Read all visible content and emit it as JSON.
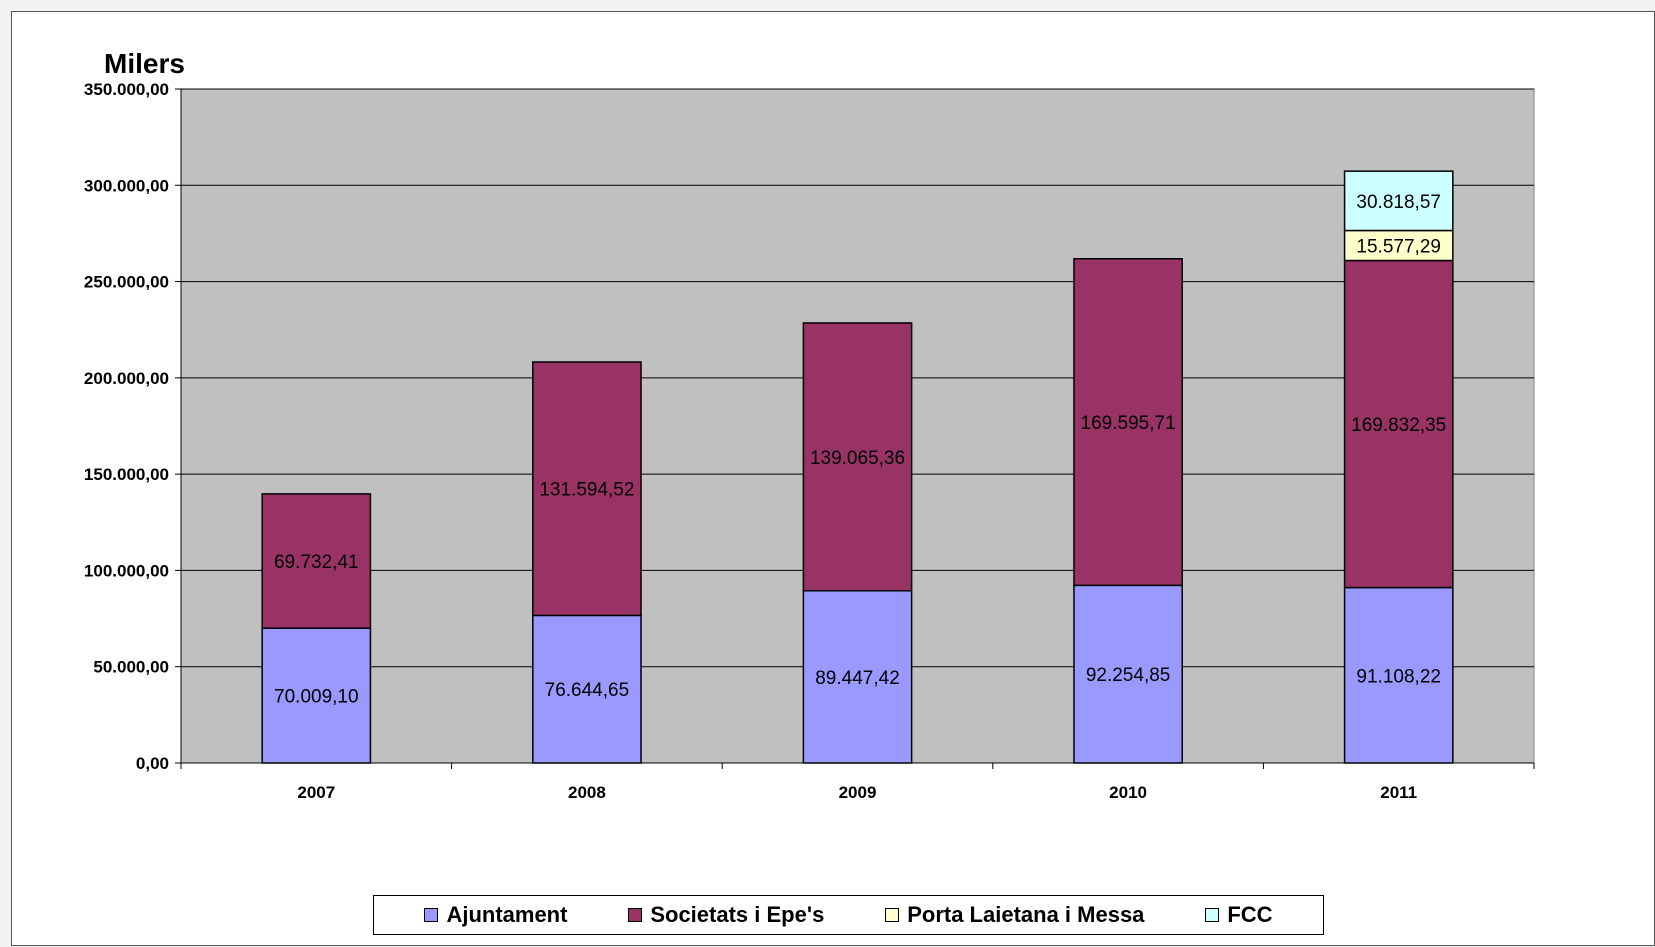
{
  "chart_data": {
    "type": "bar",
    "stacked": true,
    "ylabel": "Milers",
    "ylim": [
      0,
      350000
    ],
    "ytick_values": [
      0,
      50000,
      100000,
      150000,
      200000,
      250000,
      300000,
      350000
    ],
    "ytick_labels": [
      "0,00",
      "50.000,00",
      "100.000,00",
      "150.000,00",
      "200.000,00",
      "250.000,00",
      "300.000,00",
      "350.000,00"
    ],
    "grid": true,
    "legend_position": "bottom",
    "categories": [
      "2007",
      "2008",
      "2009",
      "2010",
      "2011"
    ],
    "series": [
      {
        "name": "Ajuntament",
        "color": "#9999ff",
        "values": [
          70009.1,
          76644.65,
          89447.42,
          92254.85,
          91108.22
        ],
        "labels": [
          "70.009,10",
          "76.644,65",
          "89.447,42",
          "92.254,85",
          "91.108,22"
        ]
      },
      {
        "name": "Societats i Epe's",
        "color": "#993366",
        "values": [
          69732.41,
          131594.52,
          139065.36,
          169595.71,
          169832.35
        ],
        "labels": [
          "69.732,41",
          "131.594,52",
          "139.065,36",
          "169.595,71",
          "169.832,35"
        ]
      },
      {
        "name": "Porta Laietana i Messa",
        "color": "#ffffcc",
        "values": [
          0,
          0,
          0,
          0,
          15577.29
        ],
        "labels": [
          "",
          "",
          "",
          "",
          "15.577,29"
        ]
      },
      {
        "name": "FCC",
        "color": "#ccffff",
        "values": [
          0,
          0,
          0,
          0,
          30818.57
        ],
        "labels": [
          "",
          "",
          "",
          "",
          "30.818,57"
        ]
      }
    ],
    "plot_background": "#c0c0c0"
  }
}
